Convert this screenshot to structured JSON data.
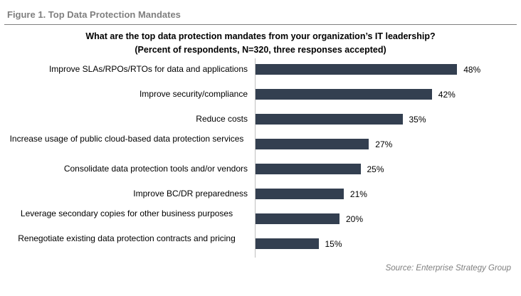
{
  "figure_label": "Figure 1.  Top Data Protection Mandates",
  "source": "Source: Enterprise Strategy Group",
  "colors": {
    "bar": "#333f50",
    "header_text": "#7f7f7f"
  },
  "chart_data": {
    "type": "bar",
    "orientation": "horizontal",
    "title": "What are the top data protection mandates from your organization’s IT leadership?",
    "subtitle": "(Percent of respondents, N=320, three responses accepted)",
    "categories": [
      "Improve SLAs/RPOs/RTOs for data and applications",
      "Improve security/compliance",
      "Reduce costs",
      "Increase usage of public cloud-based data protection services",
      "Consolidate data protection tools and/or vendors",
      "Improve BC/DR preparedness",
      "Leverage secondary copies for other business purposes",
      "Renegotiate existing data protection contracts and pricing"
    ],
    "values": [
      48,
      42,
      35,
      27,
      25,
      21,
      20,
      15
    ],
    "value_labels": [
      "48%",
      "42%",
      "35%",
      "27%",
      "25%",
      "21%",
      "20%",
      "15%"
    ],
    "unit": "%",
    "grid": false,
    "legend": "none"
  }
}
